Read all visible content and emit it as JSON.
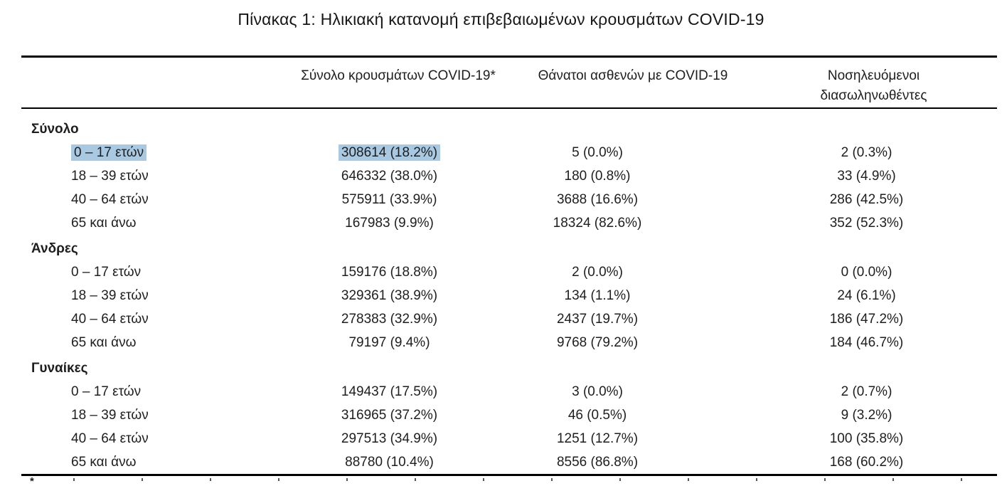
{
  "title": "Πίνακας 1: Ηλικιακή κατανομή επιβεβαιωμένων κρουσμάτων COVID-19",
  "colors": {
    "highlight": "#a9c9e3",
    "text": "#1e1e1e",
    "rule": "#000000"
  },
  "table": {
    "headers": {
      "cases": "Σύνολο κρουσμάτων COVID-19*",
      "deaths": "Θάνατοι ασθενών με COVID-19",
      "intubated": [
        "Νοσηλευόμενοι",
        "διασωληνωθέντες"
      ]
    },
    "sections": [
      {
        "label": "Σύνολο",
        "rows": [
          {
            "age": "0 – 17 ετών",
            "cases": "308614 (18.2%)",
            "deaths": "5 (0.0%)",
            "intubated": "2 (0.3%)",
            "highlighted": true
          },
          {
            "age": "18 – 39 ετών",
            "cases": "646332 (38.0%)",
            "deaths": "180 (0.8%)",
            "intubated": "33 (4.9%)"
          },
          {
            "age": "40 – 64 ετών",
            "cases": "575911 (33.9%)",
            "deaths": "3688 (16.6%)",
            "intubated": "286 (42.5%)"
          },
          {
            "age": "65 και άνω",
            "cases": "167983 (9.9%)",
            "deaths": "18324 (82.6%)",
            "intubated": "352 (52.3%)"
          }
        ]
      },
      {
        "label": "Άνδρες",
        "rows": [
          {
            "age": "0 – 17 ετών",
            "cases": "159176 (18.8%)",
            "deaths": "2 (0.0%)",
            "intubated": "0 (0.0%)"
          },
          {
            "age": "18 – 39 ετών",
            "cases": "329361 (38.9%)",
            "deaths": "134 (1.1%)",
            "intubated": "24 (6.1%)"
          },
          {
            "age": "40 – 64 ετών",
            "cases": "278383 (32.9%)",
            "deaths": "2437 (19.7%)",
            "intubated": "186 (47.2%)"
          },
          {
            "age": "65 και άνω",
            "cases": "79197 (9.4%)",
            "deaths": "9768 (79.2%)",
            "intubated": "184 (46.7%)"
          }
        ]
      },
      {
        "label": "Γυναίκες",
        "rows": [
          {
            "age": "0 – 17 ετών",
            "cases": "149437 (17.5%)",
            "deaths": "3 (0.0%)",
            "intubated": "2 (0.7%)"
          },
          {
            "age": "18 – 39 ετών",
            "cases": "316965 (37.2%)",
            "deaths": "46 (0.5%)",
            "intubated": "9 (3.2%)"
          },
          {
            "age": "40 – 64 ετών",
            "cases": "297513 (34.9%)",
            "deaths": "1251 (12.7%)",
            "intubated": "100 (35.8%)"
          },
          {
            "age": "65 και άνω",
            "cases": "88780 (10.4%)",
            "deaths": "8556 (86.8%)",
            "intubated": "168 (60.2%)"
          }
        ]
      }
    ],
    "footnote_marker": "*"
  }
}
